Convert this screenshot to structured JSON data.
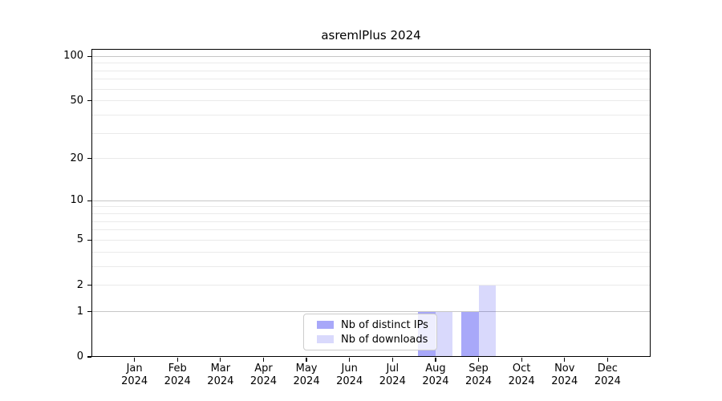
{
  "title": "asremlPlus 2024",
  "colors": {
    "bar_distinct_ips": "rgba(0,0,238,0.34)",
    "bar_downloads": "rgba(0,0,238,0.15)",
    "grid_major": "#c6c6c6",
    "grid_minor": "#eaeaea",
    "spine": "#000000",
    "text": "#000000",
    "legend_border": "#cccccc",
    "legend_background": "rgba(255,255,255,0.8)"
  },
  "chart_data": {
    "type": "bar",
    "title": "asremlPlus 2024",
    "categories": [
      "Jan 2024",
      "Feb 2024",
      "Mar 2024",
      "Apr 2024",
      "May 2024",
      "Jun 2024",
      "Jul 2024",
      "Aug 2024",
      "Sep 2024",
      "Oct 2024",
      "Nov 2024",
      "Dec 2024"
    ],
    "series": [
      {
        "name": "Nb of distinct IPs",
        "color": "rgba(0,0,238,0.34)",
        "values": [
          0,
          0,
          0,
          0,
          0,
          0,
          0,
          1,
          1,
          0,
          0,
          0
        ]
      },
      {
        "name": "Nb of downloads",
        "color": "rgba(0,0,238,0.15)",
        "values": [
          0,
          0,
          0,
          0,
          0,
          0,
          0,
          1,
          2,
          0,
          0,
          0
        ]
      }
    ],
    "xlabel": "",
    "ylabel": "",
    "yscale": "log1p",
    "ylim": [
      0,
      112
    ],
    "y_ticks": [
      0,
      1,
      2,
      5,
      10,
      20,
      50,
      100
    ],
    "y_major_gridlines": [
      1,
      10,
      100
    ],
    "y_minor_gridlines": [
      2,
      3,
      4,
      5,
      6,
      7,
      8,
      9,
      20,
      30,
      40,
      50,
      60,
      70,
      80,
      90
    ],
    "grid": "horizontal only",
    "legend_position": "lower center"
  }
}
